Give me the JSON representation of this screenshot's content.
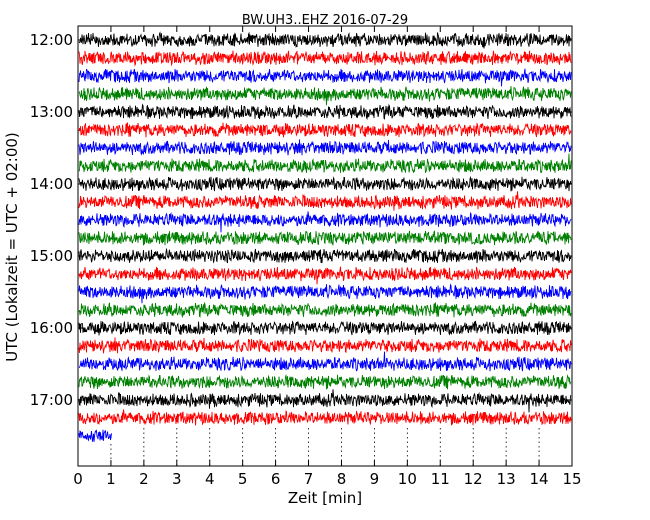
{
  "chart_data": {
    "type": "line",
    "title": "BW.UH3..EHZ 2016-07-29",
    "xlabel": "Zeit  [min]",
    "ylabel": "UTC (Lokalzeit = UTC + 02:00)",
    "xlim": [
      0,
      15
    ],
    "x_ticks": [
      "0",
      "1",
      "2",
      "3",
      "4",
      "5",
      "6",
      "7",
      "8",
      "9",
      "10",
      "11",
      "12",
      "13",
      "14",
      "15"
    ],
    "y_tick_labels": [
      "12:00",
      "13:00",
      "14:00",
      "15:00",
      "16:00",
      "17:00"
    ],
    "trace_interval_min": 15,
    "first_trace_start": "12:00",
    "grid": "dotted vertical lines at each minute, below the last trace",
    "series_colors": [
      "#000000",
      "#ff0000",
      "#0000ff",
      "#008000"
    ],
    "traces": [
      {
        "start": "12:00",
        "color": "#000000",
        "end_min": 15
      },
      {
        "start": "12:15",
        "color": "#ff0000",
        "end_min": 15
      },
      {
        "start": "12:30",
        "color": "#0000ff",
        "end_min": 15
      },
      {
        "start": "12:45",
        "color": "#008000",
        "end_min": 15
      },
      {
        "start": "13:00",
        "color": "#000000",
        "end_min": 15
      },
      {
        "start": "13:15",
        "color": "#ff0000",
        "end_min": 15
      },
      {
        "start": "13:30",
        "color": "#0000ff",
        "end_min": 15
      },
      {
        "start": "13:45",
        "color": "#008000",
        "end_min": 15
      },
      {
        "start": "14:00",
        "color": "#000000",
        "end_min": 15
      },
      {
        "start": "14:15",
        "color": "#ff0000",
        "end_min": 15
      },
      {
        "start": "14:30",
        "color": "#0000ff",
        "end_min": 15
      },
      {
        "start": "14:45",
        "color": "#008000",
        "end_min": 15
      },
      {
        "start": "15:00",
        "color": "#000000",
        "end_min": 15
      },
      {
        "start": "15:15",
        "color": "#ff0000",
        "end_min": 15
      },
      {
        "start": "15:30",
        "color": "#0000ff",
        "end_min": 15
      },
      {
        "start": "15:45",
        "color": "#008000",
        "end_min": 15
      },
      {
        "start": "16:00",
        "color": "#000000",
        "end_min": 15
      },
      {
        "start": "16:15",
        "color": "#ff0000",
        "end_min": 15
      },
      {
        "start": "16:30",
        "color": "#0000ff",
        "end_min": 15
      },
      {
        "start": "16:45",
        "color": "#008000",
        "end_min": 15
      },
      {
        "start": "17:00",
        "color": "#000000",
        "end_min": 15
      },
      {
        "start": "17:15",
        "color": "#ff0000",
        "end_min": 15
      },
      {
        "start": "17:30",
        "color": "#0000ff",
        "end_min": 1.05
      }
    ]
  }
}
